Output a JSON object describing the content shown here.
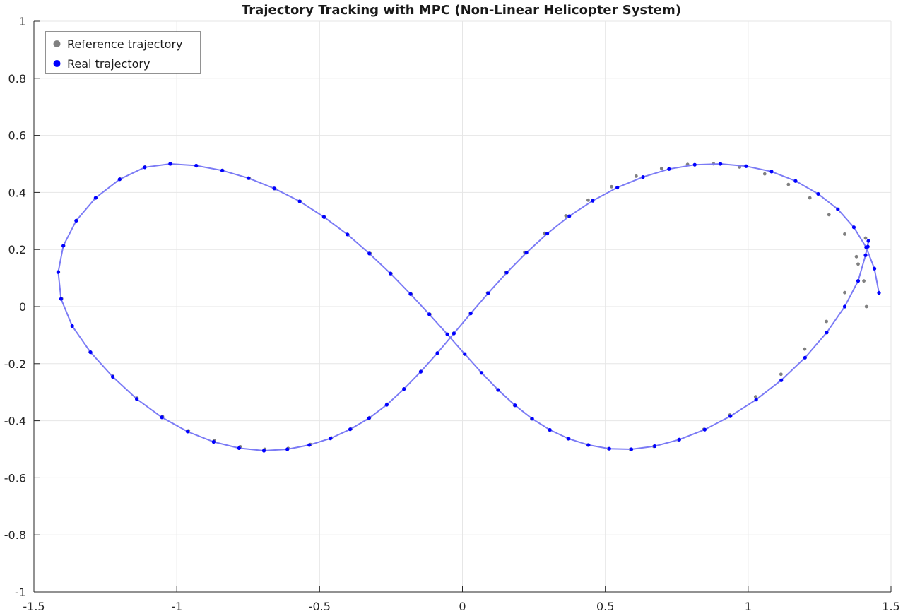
{
  "chart_data": {
    "type": "scatter",
    "title": "Trajectory Tracking with MPC (Non-Linear Helicopter System)",
    "xlabel": "",
    "ylabel": "",
    "xlim": [
      -1.5,
      1.5
    ],
    "ylim": [
      -1,
      1
    ],
    "x_ticks": [
      -1.5,
      -1,
      -0.5,
      0,
      0.5,
      1,
      1.5
    ],
    "x_tick_labels": [
      "-1.5",
      "-1",
      "-0.5",
      "0",
      "0.5",
      "1",
      "1.5"
    ],
    "y_ticks": [
      -1,
      -0.8,
      -0.6,
      -0.4,
      -0.2,
      0,
      0.2,
      0.4,
      0.6,
      0.8,
      1
    ],
    "y_tick_labels": [
      "-1",
      "-0.8",
      "-0.6",
      "-0.4",
      "-0.2",
      "0",
      "0.2",
      "0.4",
      "0.6",
      "0.8",
      "1"
    ],
    "grid": true,
    "legend_position": "top-left",
    "series": [
      {
        "name": "Reference trajectory",
        "color": "#808080",
        "marker": "dot",
        "x": [
          1.414,
          1.405,
          1.379,
          1.338,
          1.283,
          1.216,
          1.141,
          1.058,
          0.97,
          0.879,
          0.788,
          0.697,
          0.608,
          0.522,
          0.44,
          0.362,
          0.288,
          0.218,
          0.151,
          0.088,
          0.028,
          -0.03,
          -0.087,
          -0.145,
          -0.203,
          -0.263,
          -0.325,
          -0.39,
          -0.459,
          -0.532,
          -0.61,
          -0.692,
          -0.778,
          -0.868,
          -0.959,
          -1.05,
          -1.139,
          -1.224,
          -1.303,
          -1.366,
          -1.403,
          -1.414,
          -1.396,
          -1.35,
          -1.281,
          -1.198,
          -1.111,
          -1.021,
          -0.93,
          -0.838,
          -0.746,
          -0.656,
          -0.567,
          -0.482,
          -0.401,
          -0.323,
          -0.25,
          -0.18,
          -0.114,
          -0.052,
          0.008,
          0.066,
          0.124,
          0.182,
          0.242,
          0.304,
          0.369,
          0.438,
          0.511,
          0.588,
          0.67,
          0.756,
          0.845,
          0.936,
          1.026,
          1.115,
          1.198,
          1.274,
          1.338,
          1.385,
          1.411
        ],
        "y": [
          0.0,
          0.09,
          0.175,
          0.254,
          0.322,
          0.381,
          0.428,
          0.465,
          0.489,
          0.5,
          0.498,
          0.484,
          0.457,
          0.42,
          0.373,
          0.318,
          0.257,
          0.19,
          0.12,
          0.048,
          -0.023,
          -0.093,
          -0.162,
          -0.227,
          -0.288,
          -0.342,
          -0.389,
          -0.428,
          -0.46,
          -0.483,
          -0.497,
          -0.5,
          -0.491,
          -0.47,
          -0.435,
          -0.385,
          -0.321,
          -0.244,
          -0.159,
          -0.068,
          0.028,
          0.121,
          0.214,
          0.302,
          0.382,
          0.447,
          0.489,
          0.5,
          0.493,
          0.476,
          0.449,
          0.413,
          0.368,
          0.313,
          0.252,
          0.186,
          0.116,
          0.044,
          -0.027,
          -0.097,
          -0.167,
          -0.232,
          -0.292,
          -0.346,
          -0.393,
          -0.432,
          -0.463,
          -0.485,
          -0.498,
          -0.5,
          -0.49,
          -0.467,
          -0.43,
          -0.38,
          -0.316,
          -0.237,
          -0.149,
          -0.052,
          0.049,
          0.149,
          0.24
        ]
      },
      {
        "name": "Real trajectory",
        "color": "#0000ff",
        "line_color": "#7b7bf5",
        "marker": "dot",
        "x": [
          1.458,
          1.442,
          1.413,
          1.37,
          1.314,
          1.245,
          1.166,
          1.082,
          0.993,
          0.903,
          0.813,
          0.723,
          0.632,
          0.542,
          0.456,
          0.374,
          0.297,
          0.224,
          0.155,
          0.09,
          0.029,
          -0.03,
          -0.088,
          -0.146,
          -0.205,
          -0.265,
          -0.327,
          -0.393,
          -0.462,
          -0.536,
          -0.613,
          -0.695,
          -0.782,
          -0.871,
          -0.962,
          -1.052,
          -1.14,
          -1.224,
          -1.302,
          -1.366,
          -1.405,
          -1.415,
          -1.397,
          -1.352,
          -1.284,
          -1.2,
          -1.112,
          -1.023,
          -0.932,
          -0.841,
          -0.749,
          -0.659,
          -0.57,
          -0.485,
          -0.403,
          -0.326,
          -0.252,
          -0.182,
          -0.116,
          -0.053,
          0.008,
          0.067,
          0.125,
          0.184,
          0.244,
          0.306,
          0.372,
          0.441,
          0.514,
          0.591,
          0.673,
          0.759,
          0.848,
          0.938,
          1.028,
          1.116,
          1.199,
          1.275,
          1.338,
          1.385,
          1.411,
          1.421,
          1.419
        ],
        "y": [
          0.048,
          0.133,
          0.208,
          0.278,
          0.341,
          0.395,
          0.44,
          0.473,
          0.492,
          0.5,
          0.497,
          0.482,
          0.454,
          0.417,
          0.371,
          0.317,
          0.256,
          0.189,
          0.119,
          0.047,
          -0.024,
          -0.094,
          -0.163,
          -0.228,
          -0.289,
          -0.344,
          -0.391,
          -0.43,
          -0.462,
          -0.485,
          -0.5,
          -0.505,
          -0.496,
          -0.474,
          -0.438,
          -0.388,
          -0.324,
          -0.246,
          -0.16,
          -0.068,
          0.027,
          0.121,
          0.213,
          0.301,
          0.381,
          0.446,
          0.488,
          0.5,
          0.494,
          0.477,
          0.45,
          0.414,
          0.369,
          0.314,
          0.253,
          0.186,
          0.116,
          0.044,
          -0.027,
          -0.097,
          -0.166,
          -0.232,
          -0.292,
          -0.346,
          -0.393,
          -0.432,
          -0.463,
          -0.485,
          -0.498,
          -0.5,
          -0.489,
          -0.466,
          -0.431,
          -0.384,
          -0.326,
          -0.258,
          -0.179,
          -0.091,
          0.0,
          0.09,
          0.18,
          0.23,
          0.21
        ]
      }
    ]
  }
}
